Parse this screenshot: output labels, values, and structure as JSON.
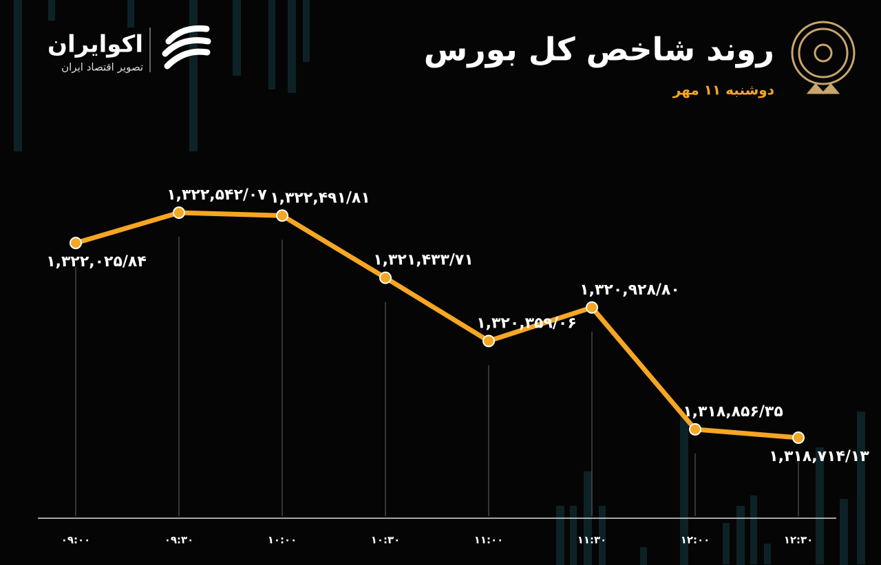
{
  "brand": {
    "name": "اکوایران",
    "tagline": "تصویر اقتصاد ایران"
  },
  "chart_data": {
    "type": "line",
    "title": "روند شاخص کل بورس",
    "subtitle": "دوشنبه ۱۱ مهر",
    "categories": [
      "۰۹:۰۰",
      "۰۹:۳۰",
      "۱۰:۰۰",
      "۱۰:۳۰",
      "۱۱:۰۰",
      "۱۱:۳۰",
      "۱۲:۰۰",
      "۱۲:۳۰"
    ],
    "values": [
      1322025.84,
      1322542.07,
      1322491.81,
      1321433.71,
      1320359.06,
      1320928.8,
      1318856.35,
      1318714.13
    ],
    "value_labels": [
      "۱,۳۲۲,۰۲۵/۸۴",
      "۱,۳۲۲,۵۴۲/۰۷",
      "۱,۳۲۲,۴۹۱/۸۱",
      "۱,۳۲۱,۴۳۳/۷۱",
      "۱,۳۲۰,۳۵۹/۰۶",
      "۱,۳۲۰,۹۲۸/۸۰",
      "۱,۳۱۸,۸۵۶/۳۵",
      "۱,۳۱۸,۷۱۴/۱۳"
    ],
    "color": "#f5a623"
  }
}
